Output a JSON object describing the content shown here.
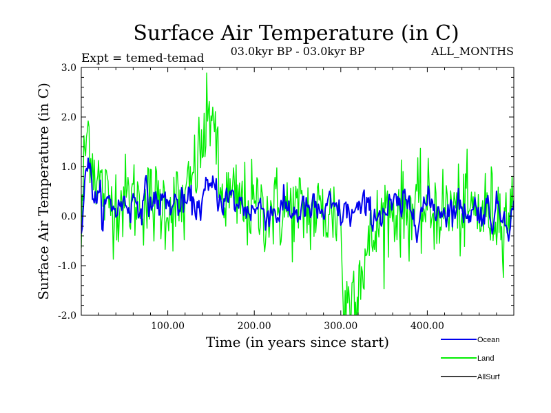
{
  "chart_data": {
    "type": "line",
    "title": "Surface Air Temperature (in C)",
    "subtitle_left": "Expt = temed-temad",
    "subtitle_center": "03.0kyr BP - 03.0kyr BP",
    "subtitle_right": "ALL_MONTHS",
    "xlabel": "Time (in years since start)",
    "ylabel": "Surface Air Temperature (in C)",
    "xlim": [
      0,
      500
    ],
    "ylim": [
      -2.0,
      3.0
    ],
    "x_ticks": [
      100,
      200,
      300,
      400
    ],
    "x_tick_labels": [
      "100.00",
      "200.00",
      "300.00",
      "400.00"
    ],
    "y_ticks": [
      -2.0,
      -1.0,
      0.0,
      1.0,
      2.0,
      3.0
    ],
    "y_tick_labels": [
      "-2.0",
      "-1.0",
      "0.0",
      "1.0",
      "2.0",
      "3.0"
    ],
    "legend": [
      "Ocean",
      "Land",
      "AllSurf"
    ],
    "series": [
      {
        "name": "Land",
        "color": "#00ee00",
        "description": "noisy annual series, mean ~0.2, std ~0.5",
        "anchor_points": {
          "x": [
            0,
            3,
            6,
            9,
            12,
            18,
            30,
            60,
            90,
            120,
            152,
            160,
            200,
            250,
            300,
            303,
            350,
            400,
            450,
            500
          ],
          "y": [
            -0.5,
            1.0,
            1.6,
            1.8,
            1.2,
            0.8,
            0.3,
            0.35,
            0.25,
            0.2,
            2.2,
            0.4,
            0.15,
            0.1,
            0.05,
            -1.95,
            0.1,
            0.15,
            0.1,
            0.05
          ]
        }
      },
      {
        "name": "Ocean",
        "color": "#0000ee",
        "description": "smoother series, range ~-0.3 to 1.3",
        "anchor_points": {
          "x": [
            0,
            3,
            6,
            10,
            15,
            20,
            40,
            70,
            100,
            130,
            155,
            170,
            200,
            250,
            300,
            350,
            400,
            450,
            500
          ],
          "y": [
            -0.2,
            0.6,
            1.25,
            0.8,
            0.5,
            0.2,
            0.2,
            0.35,
            0.25,
            0.2,
            0.55,
            0.3,
            0.15,
            0.1,
            0.05,
            0.1,
            0.2,
            0.15,
            0.05
          ]
        }
      },
      {
        "name": "AllSurf",
        "color": "#000000",
        "values": []
      }
    ]
  }
}
